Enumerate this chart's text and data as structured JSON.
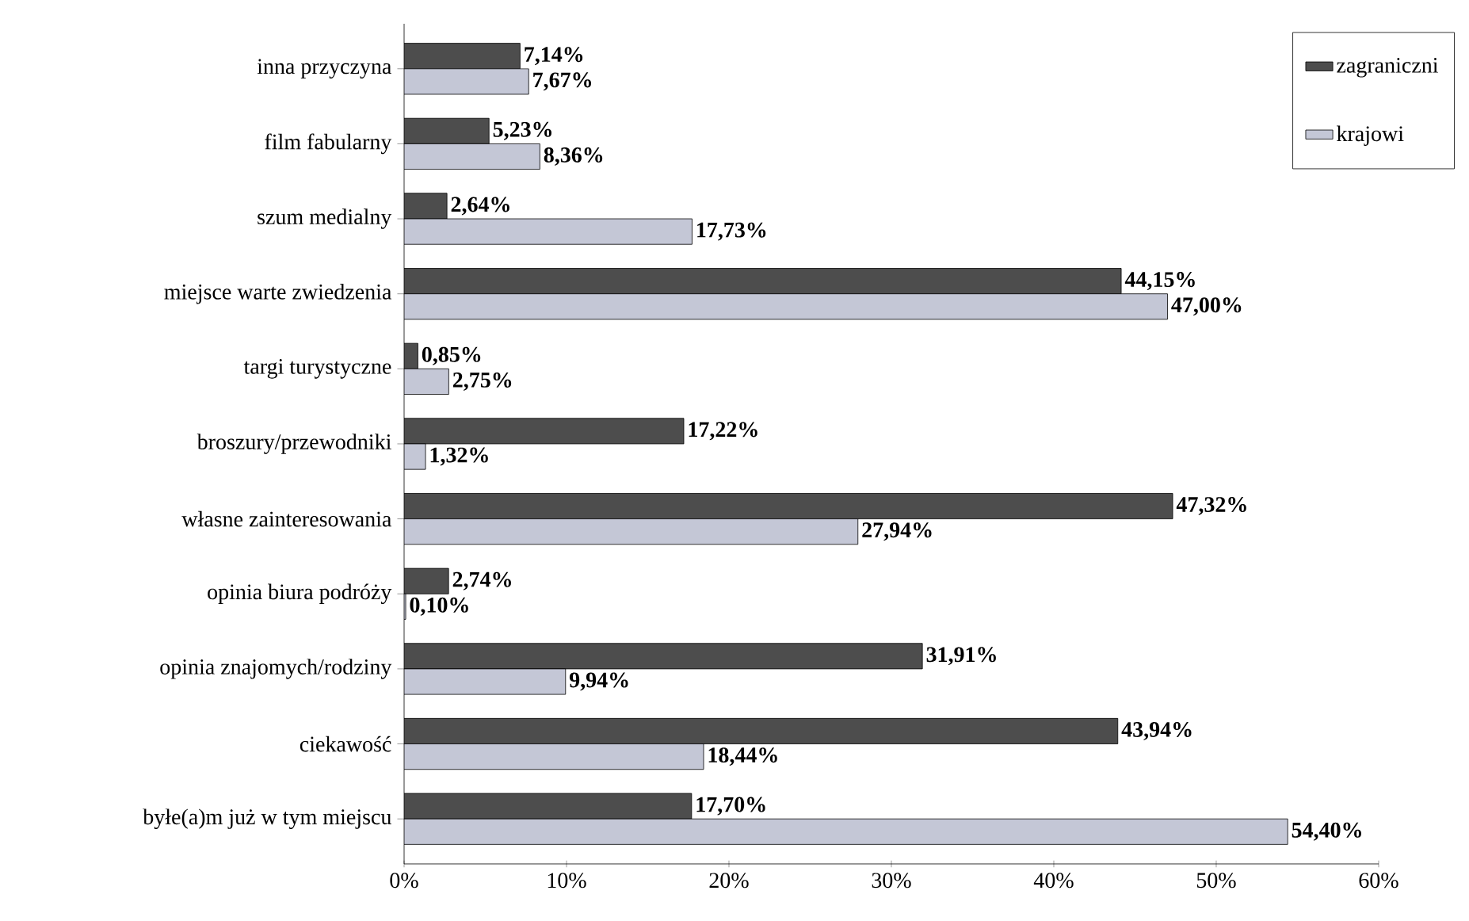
{
  "chart_data": {
    "type": "bar",
    "orientation": "horizontal",
    "categories": [
      "inna przyczyna",
      "film fabularny",
      "szum medialny",
      "miejsce warte zwiedzenia",
      "targi turystyczne",
      "broszury/przewodniki",
      "własne zainteresowania",
      "opinia biura podróży",
      "opinia znajomych/rodziny",
      "ciekawość",
      "byłe(a)m już w tym miejscu"
    ],
    "series": [
      {
        "name": "zagraniczni",
        "color": "#4d4d4d",
        "values": [
          7.14,
          5.23,
          2.64,
          44.15,
          0.85,
          17.22,
          47.32,
          2.74,
          31.91,
          43.94,
          17.7
        ],
        "value_labels": [
          "7,14%",
          "5,23%",
          "2,64%",
          "44,15%",
          "0,85%",
          "17,22%",
          "47,32%",
          "2,74%",
          "31,91%",
          "43,94%",
          "17,70%"
        ]
      },
      {
        "name": "krajowi",
        "color": "#c4c7d6",
        "values": [
          7.67,
          8.36,
          17.73,
          47.0,
          2.75,
          1.32,
          27.94,
          0.1,
          9.94,
          18.44,
          54.4
        ],
        "value_labels": [
          "7,67%",
          "8,36%",
          "17,73%",
          "47,00%",
          "2,75%",
          "1,32%",
          "27,94%",
          "0,10%",
          "9,94%",
          "18,44%",
          "54,40%"
        ]
      }
    ],
    "xlim": [
      0,
      60
    ],
    "xticks": [
      {
        "value": 0,
        "label": "0%"
      },
      {
        "value": 10,
        "label": "10%"
      },
      {
        "value": 20,
        "label": "20%"
      },
      {
        "value": 30,
        "label": "30%"
      },
      {
        "value": 40,
        "label": "40%"
      },
      {
        "value": 50,
        "label": "50%"
      },
      {
        "value": 60,
        "label": "60%"
      }
    ],
    "legend": "top right"
  }
}
